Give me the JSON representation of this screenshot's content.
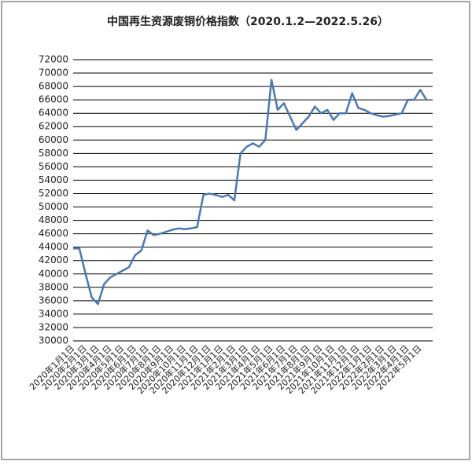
{
  "chart_data": {
    "type": "line",
    "title": "中国再生资源废铜价格指数（2020.1.2—2022.5.26）",
    "color": "#4a78b5",
    "categories": [
      "2020年1月1日",
      null,
      "2020年2月1日",
      null,
      "2020年3月1日",
      null,
      "2020年4月1日",
      null,
      "2020年5月1日",
      null,
      "2020年6月1日",
      null,
      "2020年7月1日",
      null,
      "2020年8月1日",
      null,
      "2020年9月1日",
      null,
      "2020年10月1日",
      null,
      "2020年11月1日",
      null,
      "2020年12月1日",
      null,
      "2021年1月1日",
      null,
      "2021年2月1日",
      null,
      "2021年3月1日",
      null,
      "2021年4月1日",
      null,
      "2021年5月1日",
      null,
      "2021年6月1日",
      null,
      "2021年7月1日",
      null,
      "2021年8月1日",
      null,
      "2021年9月1日",
      null,
      "2021年10月1日",
      null,
      "2021年11月1日",
      null,
      "2021年12月1日",
      null,
      "2022年1月1日",
      null,
      "2022年2月1日",
      null,
      "2022年3月1日",
      null,
      "2022年4月1日",
      null,
      "2022年5月1日",
      null
    ],
    "values": [
      43800,
      43800,
      40000,
      36500,
      35500,
      38500,
      39500,
      40000,
      40500,
      41000,
      42800,
      43500,
      46500,
      45800,
      46000,
      46300,
      46600,
      46800,
      46700,
      46800,
      47000,
      51800,
      52000,
      51800,
      51500,
      51800,
      51000,
      58000,
      59000,
      59500,
      59000,
      60000,
      69000,
      64500,
      65500,
      63500,
      61500,
      62500,
      63500,
      65000,
      64000,
      64500,
      63000,
      64000,
      64000,
      67000,
      64800,
      64500,
      64000,
      63700,
      63500,
      63600,
      63800,
      64000,
      66000,
      66000,
      67500,
      66000
    ],
    "ylim": [
      30000,
      72000
    ],
    "yticks": [
      30000,
      32000,
      34000,
      36000,
      38000,
      40000,
      42000,
      44000,
      46000,
      48000,
      50000,
      52000,
      54000,
      56000,
      58000,
      60000,
      62000,
      64000,
      66000,
      68000,
      70000,
      72000
    ],
    "grid": true
  }
}
